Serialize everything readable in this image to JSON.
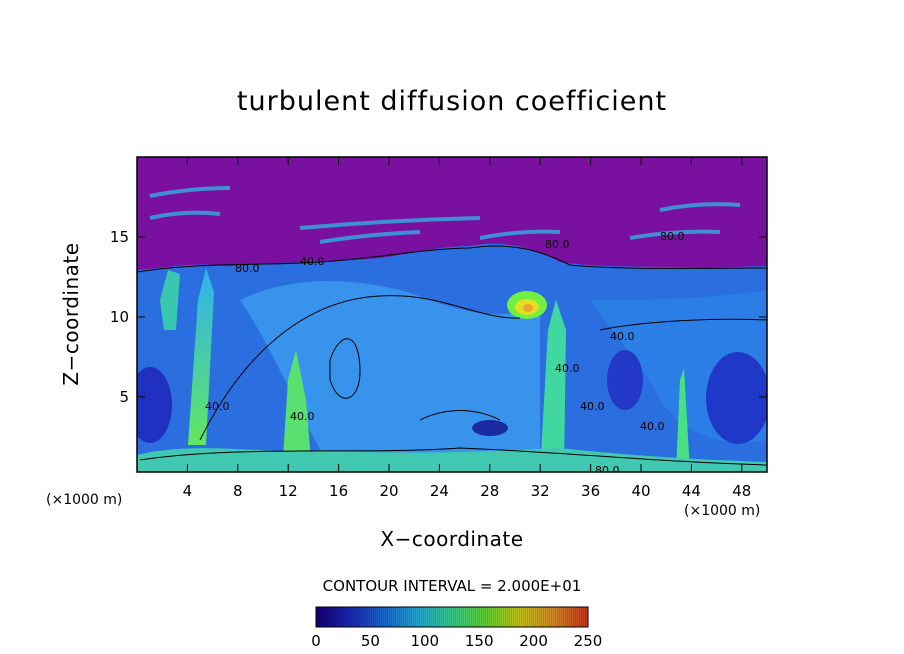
{
  "chart_data": {
    "type": "heatmap",
    "title": "turbulent diffusion coefficient",
    "xlabel": "X−coordinate",
    "ylabel": "Z−coordinate",
    "x_unit_label": "(×1000 m)",
    "z_unit_label": "(×1000 m)",
    "xlim": [
      0,
      50
    ],
    "ylim": [
      0.3,
      20
    ],
    "xticks": [
      "4",
      "8",
      "12",
      "16",
      "20",
      "24",
      "28",
      "32",
      "36",
      "40",
      "44",
      "48"
    ],
    "yticks": [
      "5",
      "10",
      "15"
    ],
    "xtick_values": [
      4,
      8,
      12,
      16,
      20,
      24,
      28,
      32,
      36,
      40,
      44,
      48
    ],
    "ytick_values": [
      5,
      10,
      15
    ],
    "contour_interval_text": "CONTOUR INTERVAL = 2.000E+01",
    "contour_interval": 20,
    "contour_labels": [
      "40.0",
      "40.0",
      "40.0",
      "40.0",
      "40.0",
      "40.0",
      "40.0",
      "80.0",
      "80.0",
      "80.0",
      "80.0"
    ],
    "colorbar": {
      "range": [
        0,
        250
      ],
      "ticks": [
        "0",
        "50",
        "100",
        "150",
        "200",
        "250"
      ],
      "tick_values": [
        0,
        50,
        100,
        150,
        200,
        250
      ]
    },
    "colormap": [
      "#1a0080",
      "#2030c8",
      "#1e78e8",
      "#30c0f0",
      "#40e8a0",
      "#70f040",
      "#e0e020",
      "#f0a030",
      "#e04020"
    ],
    "background_value_color": "#7a10a0"
  }
}
